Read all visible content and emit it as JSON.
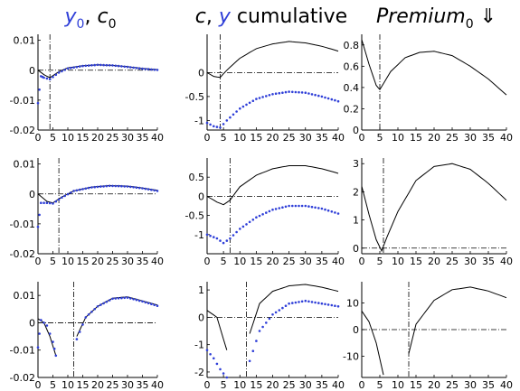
{
  "titles": {
    "col1": {
      "a": "y",
      "a_sub": "0",
      "sep": ", ",
      "b": "c",
      "b_sub": "0"
    },
    "col2": {
      "a": "c",
      "sep": ", ",
      "b": "y",
      "rest": " cumulative"
    },
    "col3": {
      "a": "Premium",
      "a_sub": "0",
      "rest": " ⇓"
    }
  },
  "colors": {
    "black_line": "#000000",
    "blue_dots": "#2f3fd8"
  },
  "chart_data": [
    {
      "type": "line",
      "row": 1,
      "col": 1,
      "xlim": [
        0,
        40
      ],
      "ylim": [
        -0.02,
        0.012
      ],
      "xticks": [
        "0",
        "5",
        "10",
        "15",
        "20",
        "25",
        "30",
        "35",
        "40"
      ],
      "yticks": [
        {
          "v": 0.01,
          "label": "0.01"
        },
        {
          "v": 0,
          "label": "0"
        },
        {
          "v": -0.01,
          "label": "-0.01"
        },
        {
          "v": -0.02,
          "label": "-0.02"
        }
      ],
      "vline": 4,
      "gap": null,
      "black": [
        [
          0,
          0
        ],
        [
          2,
          -0.0015
        ],
        [
          4,
          -0.0025
        ],
        [
          7,
          -0.0005
        ],
        [
          10,
          0.0008
        ],
        [
          15,
          0.0015
        ],
        [
          20,
          0.0018
        ],
        [
          25,
          0.0016
        ],
        [
          30,
          0.0012
        ],
        [
          35,
          0.0006
        ],
        [
          40,
          0.0002
        ]
      ],
      "blue": [
        [
          0,
          -0.011
        ],
        [
          1,
          -0.002
        ],
        [
          2,
          -0.0025
        ],
        [
          4,
          -0.003
        ],
        [
          7,
          -0.0008
        ],
        [
          10,
          0.0006
        ],
        [
          15,
          0.0014
        ],
        [
          20,
          0.0018
        ],
        [
          25,
          0.0016
        ],
        [
          30,
          0.0011
        ],
        [
          35,
          0.0005
        ],
        [
          40,
          0.0001
        ]
      ]
    },
    {
      "type": "line",
      "row": 1,
      "col": 2,
      "xlim": [
        0,
        40
      ],
      "ylim": [
        -1.2,
        0.8
      ],
      "xticks": [
        "0",
        "5",
        "10",
        "15",
        "20",
        "25",
        "30",
        "35",
        "40"
      ],
      "yticks": [
        {
          "v": 0,
          "label": "0"
        },
        {
          "v": -0.5,
          "label": "-0.5"
        },
        {
          "v": -1,
          "label": "-1"
        }
      ],
      "vline": 4,
      "gap": null,
      "black": [
        [
          0,
          0
        ],
        [
          2,
          -0.08
        ],
        [
          4,
          -0.1
        ],
        [
          6,
          0.05
        ],
        [
          10,
          0.3
        ],
        [
          15,
          0.5
        ],
        [
          20,
          0.6
        ],
        [
          25,
          0.65
        ],
        [
          30,
          0.62
        ],
        [
          35,
          0.55
        ],
        [
          40,
          0.45
        ]
      ],
      "blue": [
        [
          0,
          -1.05
        ],
        [
          2,
          -1.12
        ],
        [
          4,
          -1.15
        ],
        [
          6,
          -1.0
        ],
        [
          10,
          -0.75
        ],
        [
          15,
          -0.55
        ],
        [
          20,
          -0.45
        ],
        [
          25,
          -0.4
        ],
        [
          30,
          -0.42
        ],
        [
          35,
          -0.5
        ],
        [
          40,
          -0.6
        ]
      ]
    },
    {
      "type": "line",
      "row": 1,
      "col": 3,
      "xlim": [
        0,
        40
      ],
      "ylim": [
        0,
        0.9
      ],
      "xticks": [
        "0",
        "5",
        "10",
        "15",
        "20",
        "25",
        "30",
        "35",
        "40"
      ],
      "yticks": [
        {
          "v": 0.8,
          "label": "0.8"
        },
        {
          "v": 0.6,
          "label": "0.6"
        },
        {
          "v": 0.4,
          "label": "0.4"
        },
        {
          "v": 0.2,
          "label": "0.2"
        },
        {
          "v": 0,
          "label": "0"
        }
      ],
      "vline": 5,
      "gap": null,
      "black": [
        [
          0,
          0.85
        ],
        [
          2,
          0.62
        ],
        [
          4,
          0.42
        ],
        [
          5,
          0.38
        ],
        [
          8,
          0.55
        ],
        [
          12,
          0.68
        ],
        [
          16,
          0.73
        ],
        [
          20,
          0.74
        ],
        [
          25,
          0.7
        ],
        [
          30,
          0.6
        ],
        [
          35,
          0.48
        ],
        [
          40,
          0.33
        ]
      ],
      "blue": []
    },
    {
      "type": "line",
      "row": 2,
      "col": 1,
      "xlim": [
        0,
        40
      ],
      "ylim": [
        -0.02,
        0.012
      ],
      "xticks": [
        "0",
        "5",
        "10",
        "15",
        "20",
        "25",
        "30",
        "35",
        "40"
      ],
      "yticks": [
        {
          "v": 0.01,
          "label": "0.01"
        },
        {
          "v": 0,
          "label": "0"
        },
        {
          "v": -0.01,
          "label": "-0.01"
        },
        {
          "v": -0.02,
          "label": "-0.02"
        }
      ],
      "vline": 7,
      "gap": null,
      "black": [
        [
          0,
          0
        ],
        [
          3,
          -0.0025
        ],
        [
          5,
          -0.003
        ],
        [
          8,
          -0.001
        ],
        [
          12,
          0.001
        ],
        [
          18,
          0.0023
        ],
        [
          24,
          0.0028
        ],
        [
          30,
          0.0026
        ],
        [
          35,
          0.002
        ],
        [
          40,
          0.0012
        ]
      ],
      "blue": [
        [
          0,
          -0.011
        ],
        [
          1,
          -0.003
        ],
        [
          3,
          -0.003
        ],
        [
          5,
          -0.0032
        ],
        [
          8,
          -0.0012
        ],
        [
          12,
          0.001
        ],
        [
          18,
          0.0022
        ],
        [
          24,
          0.0027
        ],
        [
          30,
          0.0025
        ],
        [
          35,
          0.0019
        ],
        [
          40,
          0.001
        ]
      ]
    },
    {
      "type": "line",
      "row": 2,
      "col": 2,
      "xlim": [
        0,
        40
      ],
      "ylim": [
        -1.5,
        1.0
      ],
      "xticks": [
        "0",
        "5",
        "10",
        "15",
        "20",
        "25",
        "30",
        "35",
        "40"
      ],
      "yticks": [
        {
          "v": 0.5,
          "label": "0.5"
        },
        {
          "v": 0,
          "label": "0"
        },
        {
          "v": -0.5,
          "label": "-0.5"
        },
        {
          "v": -1,
          "label": "-1"
        }
      ],
      "vline": 7,
      "gap": null,
      "black": [
        [
          0,
          0
        ],
        [
          3,
          -0.15
        ],
        [
          5,
          -0.22
        ],
        [
          7,
          -0.1
        ],
        [
          10,
          0.25
        ],
        [
          15,
          0.55
        ],
        [
          20,
          0.72
        ],
        [
          25,
          0.8
        ],
        [
          30,
          0.8
        ],
        [
          35,
          0.72
        ],
        [
          40,
          0.6
        ]
      ],
      "blue": [
        [
          0,
          -1.0
        ],
        [
          3,
          -1.1
        ],
        [
          5,
          -1.22
        ],
        [
          7,
          -1.1
        ],
        [
          10,
          -0.85
        ],
        [
          15,
          -0.55
        ],
        [
          20,
          -0.35
        ],
        [
          25,
          -0.25
        ],
        [
          30,
          -0.25
        ],
        [
          35,
          -0.32
        ],
        [
          40,
          -0.45
        ]
      ]
    },
    {
      "type": "line",
      "row": 2,
      "col": 3,
      "xlim": [
        0,
        40
      ],
      "ylim": [
        -0.2,
        3.2
      ],
      "xticks": [
        "0",
        "5",
        "10",
        "15",
        "20",
        "25",
        "30",
        "35",
        "40"
      ],
      "yticks": [
        {
          "v": 3,
          "label": "3"
        },
        {
          "v": 2,
          "label": "2"
        },
        {
          "v": 1,
          "label": "1"
        },
        {
          "v": 0,
          "label": "0"
        }
      ],
      "vline": 6,
      "gap": null,
      "black": [
        [
          0,
          2.2
        ],
        [
          2,
          1.2
        ],
        [
          4,
          0.3
        ],
        [
          5.5,
          -0.1
        ],
        [
          7,
          0.4
        ],
        [
          10,
          1.3
        ],
        [
          15,
          2.4
        ],
        [
          20,
          2.9
        ],
        [
          25,
          3.0
        ],
        [
          30,
          2.8
        ],
        [
          35,
          2.3
        ],
        [
          40,
          1.7
        ]
      ],
      "blue": []
    },
    {
      "type": "line",
      "row": 3,
      "col": 1,
      "xlim": [
        0,
        40
      ],
      "ylim": [
        -0.02,
        0.015
      ],
      "xticks": [
        "0",
        "5",
        "10",
        "15",
        "20",
        "25",
        "30",
        "35",
        "40"
      ],
      "yticks": [
        {
          "v": 0.01,
          "label": "0.01"
        },
        {
          "v": 0,
          "label": "0"
        },
        {
          "v": -0.01,
          "label": "-0.01"
        },
        {
          "v": -0.02,
          "label": "-0.02"
        }
      ],
      "vline": 12,
      "gap": [
        6,
        13
      ],
      "black": [
        [
          0,
          0.0015
        ],
        [
          2,
          0
        ],
        [
          4,
          -0.005
        ],
        [
          6,
          -0.012
        ],
        [
          13,
          -0.005
        ],
        [
          16,
          0.002
        ],
        [
          20,
          0.006
        ],
        [
          25,
          0.009
        ],
        [
          30,
          0.0095
        ],
        [
          35,
          0.008
        ],
        [
          40,
          0.0065
        ]
      ],
      "blue": [
        [
          0,
          -0.009
        ],
        [
          1,
          0.001
        ],
        [
          3,
          -0.001
        ],
        [
          5,
          -0.007
        ],
        [
          6,
          -0.012
        ],
        [
          13,
          -0.006
        ],
        [
          16,
          0.002
        ],
        [
          20,
          0.006
        ],
        [
          25,
          0.0088
        ],
        [
          30,
          0.0092
        ],
        [
          35,
          0.0078
        ],
        [
          40,
          0.0062
        ]
      ]
    },
    {
      "type": "line",
      "row": 3,
      "col": 2,
      "xlim": [
        0,
        40
      ],
      "ylim": [
        -2.2,
        1.3
      ],
      "xticks": [
        "0",
        "5",
        "10",
        "15",
        "20",
        "25",
        "30",
        "35",
        "40"
      ],
      "yticks": [
        {
          "v": 1,
          "label": "1"
        },
        {
          "v": 0,
          "label": "0"
        },
        {
          "v": -1,
          "label": "-1"
        },
        {
          "v": -2,
          "label": "-2"
        }
      ],
      "vline": 12,
      "gap": [
        6,
        13
      ],
      "black": [
        [
          0,
          0.25
        ],
        [
          3,
          0
        ],
        [
          6,
          -1.2
        ],
        [
          13,
          -0.6
        ],
        [
          16,
          0.5
        ],
        [
          20,
          0.95
        ],
        [
          25,
          1.15
        ],
        [
          30,
          1.2
        ],
        [
          35,
          1.1
        ],
        [
          40,
          0.95
        ]
      ],
      "blue": [
        [
          0,
          -1.2
        ],
        [
          2,
          -1.5
        ],
        [
          4,
          -1.9
        ],
        [
          6,
          -2.2
        ],
        [
          13,
          -1.6
        ],
        [
          16,
          -0.5
        ],
        [
          20,
          0.1
        ],
        [
          25,
          0.5
        ],
        [
          30,
          0.6
        ],
        [
          35,
          0.5
        ],
        [
          40,
          0.4
        ]
      ]
    },
    {
      "type": "line",
      "row": 3,
      "col": 3,
      "xlim": [
        0,
        40
      ],
      "ylim": [
        -18,
        18
      ],
      "xticks": [
        "0",
        "5",
        "10",
        "15",
        "20",
        "25",
        "30",
        "35",
        "40"
      ],
      "yticks": [
        {
          "v": 10,
          "label": "10"
        },
        {
          "v": 0,
          "label": "0"
        },
        {
          "v": -10,
          "label": "-10"
        }
      ],
      "vline": 13,
      "gap": [
        7,
        13
      ],
      "black": [
        [
          0,
          7
        ],
        [
          2,
          3
        ],
        [
          4,
          -5
        ],
        [
          6,
          -17
        ],
        [
          13,
          -9
        ],
        [
          15,
          2
        ],
        [
          20,
          11
        ],
        [
          25,
          15
        ],
        [
          30,
          16
        ],
        [
          35,
          14.5
        ],
        [
          40,
          12
        ]
      ],
      "blue": []
    }
  ]
}
